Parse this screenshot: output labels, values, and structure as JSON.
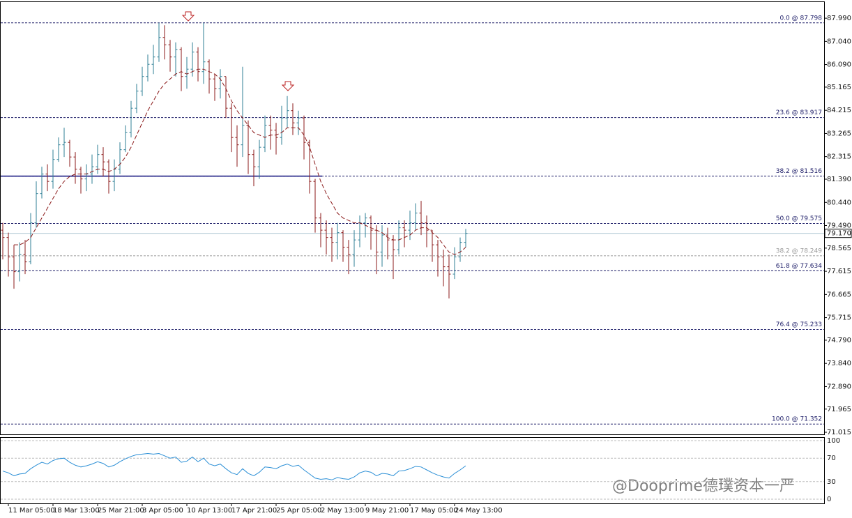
{
  "chart_data": [
    {
      "type": "ohlc",
      "categories": [
        null,
        "11 Mar 05:00",
        null,
        null,
        null,
        null,
        null,
        null,
        null,
        "18 Mar 13:00",
        null,
        null,
        null,
        null,
        null,
        null,
        null,
        "25 Mar 21:00",
        null,
        null,
        null,
        null,
        null,
        null,
        null,
        "3 Apr 05:00",
        null,
        null,
        null,
        null,
        null,
        null,
        null,
        "10 Apr 13:00",
        null,
        null,
        null,
        null,
        null,
        null,
        null,
        "17 Apr 21:00",
        null,
        null,
        null,
        null,
        null,
        null,
        null,
        "25 Apr 05:00",
        null,
        null,
        null,
        null,
        null,
        null,
        null,
        "2 May 13:00",
        null,
        null,
        null,
        null,
        null,
        null,
        null,
        "9 May 21:00",
        null,
        null,
        null,
        null,
        null,
        null,
        null,
        "17 May 05:00",
        null,
        null,
        null,
        null,
        null,
        null,
        null,
        "24 May 13:00",
        null,
        null
      ],
      "open": [
        79.3,
        79.0,
        78.2,
        77.6,
        78.3,
        78.0,
        79.6,
        80.8,
        81.6,
        81.3,
        82.2,
        82.8,
        82.9,
        82.3,
        81.8,
        81.4,
        81.6,
        81.9,
        82.4,
        82.1,
        81.3,
        81.8,
        82.6,
        83.3,
        84.3,
        85.0,
        85.6,
        86.1,
        86.4,
        87.2,
        86.9,
        86.4,
        86.7,
        85.6,
        85.9,
        86.6,
        85.8,
        86.2,
        85.5,
        85.1,
        85.6,
        84.3,
        83.1,
        82.8,
        83.6,
        82.4,
        81.9,
        82.7,
        83.6,
        83.4,
        83.1,
        83.9,
        84.2,
        83.7,
        83.9,
        82.9,
        81.3,
        79.8,
        79.3,
        79.0,
        78.8,
        79.2,
        78.6,
        78.3,
        78.9,
        79.6,
        79.8,
        79.3,
        78.4,
        79.1,
        78.9,
        78.5,
        79.4,
        79.3,
        79.6,
        80.0,
        79.6,
        79.3,
        78.7,
        78.2,
        77.8,
        77.5,
        78.2,
        78.8
      ],
      "high": [
        79.6,
        79.2,
        78.7,
        78.8,
        78.9,
        80.0,
        81.3,
        81.9,
        82.0,
        82.6,
        83.1,
        83.5,
        83.0,
        82.5,
        81.9,
        82.0,
        82.4,
        82.8,
        82.7,
        82.2,
        82.2,
        82.9,
        83.6,
        84.6,
        85.3,
        86.0,
        86.5,
        86.9,
        87.8,
        87.7,
        87.1,
        87.0,
        86.8,
        86.4,
        87.0,
        86.8,
        87.8,
        86.3,
        85.7,
        85.9,
        85.6,
        84.5,
        83.6,
        86.0,
        83.8,
        82.6,
        83.0,
        84.0,
        84.0,
        83.7,
        84.4,
        84.8,
        84.5,
        84.2,
        84.0,
        83.0,
        81.4,
        80.0,
        79.7,
        79.4,
        79.6,
        79.3,
        78.9,
        79.3,
        79.9,
        80.0,
        79.9,
        79.5,
        79.5,
        79.4,
        79.1,
        79.7,
        79.7,
        80.1,
        80.4,
        80.5,
        79.9,
        79.3,
        78.9,
        78.5,
        78.3,
        78.6,
        79.0,
        79.35
      ],
      "low": [
        78.1,
        77.4,
        76.9,
        77.2,
        77.5,
        77.9,
        79.4,
        80.6,
        80.9,
        81.0,
        82.1,
        82.3,
        81.9,
        81.2,
        80.8,
        80.9,
        81.2,
        81.6,
        81.5,
        80.8,
        80.9,
        81.6,
        82.5,
        83.1,
        84.1,
        84.8,
        85.4,
        85.7,
        86.2,
        86.3,
        85.8,
        85.6,
        85.0,
        85.1,
        85.6,
        85.4,
        85.3,
        84.9,
        84.6,
        84.7,
        83.9,
        82.5,
        81.9,
        82.3,
        81.6,
        81.1,
        81.4,
        82.5,
        82.6,
        82.4,
        82.8,
        83.5,
        83.2,
        83.2,
        82.2,
        80.8,
        79.2,
        78.6,
        78.3,
        78.0,
        78.1,
        78.0,
        77.5,
        77.8,
        78.6,
        79.0,
        78.5,
        77.5,
        77.8,
        78.1,
        77.3,
        78.3,
        78.6,
        78.9,
        79.3,
        79.1,
        78.6,
        78.0,
        77.4,
        77.0,
        76.5,
        77.3,
        78.0,
        78.6
      ],
      "close": [
        79.0,
        78.2,
        77.6,
        78.3,
        78.0,
        79.6,
        80.8,
        81.6,
        81.3,
        82.2,
        82.8,
        82.9,
        82.3,
        81.8,
        81.4,
        81.6,
        81.9,
        82.4,
        82.1,
        81.3,
        81.8,
        82.6,
        83.3,
        84.3,
        85.0,
        85.6,
        86.1,
        86.4,
        87.2,
        86.9,
        86.4,
        86.7,
        85.6,
        85.9,
        86.6,
        85.8,
        86.2,
        85.5,
        85.1,
        85.6,
        84.3,
        83.1,
        82.8,
        83.6,
        82.4,
        81.9,
        82.7,
        83.6,
        83.4,
        83.1,
        83.9,
        84.2,
        83.7,
        83.9,
        82.9,
        81.3,
        79.8,
        79.3,
        79.0,
        78.8,
        79.2,
        78.6,
        78.3,
        78.9,
        79.6,
        79.8,
        79.3,
        78.4,
        79.1,
        78.9,
        78.5,
        79.4,
        79.3,
        79.6,
        80.0,
        79.6,
        79.3,
        78.7,
        78.2,
        77.8,
        77.5,
        78.2,
        78.8,
        79.17
      ],
      "up_color": "#2f7f96",
      "down_color": "#8b1a1a",
      "ma": [
        null,
        null,
        78.7,
        78.7,
        78.8,
        79.0,
        79.4,
        79.8,
        80.2,
        80.6,
        81.0,
        81.3,
        81.5,
        81.6,
        81.6,
        81.6,
        81.7,
        81.8,
        81.8,
        81.7,
        81.8,
        82.0,
        82.3,
        82.7,
        83.2,
        83.7,
        84.2,
        84.6,
        85.0,
        85.3,
        85.5,
        85.7,
        85.8,
        85.7,
        85.8,
        85.9,
        85.9,
        85.8,
        85.7,
        85.5,
        85.1,
        84.6,
        84.2,
        83.9,
        83.6,
        83.3,
        83.2,
        83.1,
        83.2,
        83.2,
        83.3,
        83.5,
        83.5,
        83.5,
        83.2,
        82.7,
        82.0,
        81.3,
        80.8,
        80.4,
        80.0,
        79.8,
        79.7,
        79.6,
        79.6,
        79.5,
        79.4,
        79.3,
        79.2,
        79.0,
        78.9,
        78.9,
        79.0,
        79.1,
        79.3,
        79.4,
        79.4,
        79.2,
        79.0,
        78.7,
        78.4,
        78.3,
        78.4,
        78.6
      ],
      "ma_color": "#8b1a1a",
      "ylim": [
        70.93,
        88.65
      ],
      "yticks": [
        {
          "value": 87.99,
          "label": "87.990"
        },
        {
          "value": 87.04,
          "label": "87.040"
        },
        {
          "value": 86.09,
          "label": "86.090"
        },
        85.165,
        84.215,
        83.265,
        82.315,
        {
          "value": 81.39,
          "label": "81.390"
        },
        {
          "value": 80.44,
          "label": "80.440"
        },
        {
          "value": 79.49,
          "label": "79.490"
        },
        78.565,
        77.615,
        76.665,
        75.715,
        {
          "value": 74.79,
          "label": "74.790"
        },
        {
          "value": 73.84,
          "label": "73.840"
        },
        {
          "value": 72.89,
          "label": "72.890"
        },
        71.965,
        71.015
      ],
      "levels": [
        {
          "value": 87.798,
          "label": "0.0 @ 87.798",
          "color": "#1a1a66"
        },
        {
          "value": 83.917,
          "label": "23.6 @ 83.917",
          "color": "#1a1a66"
        },
        {
          "value": 81.516,
          "label": "38.2 @ 81.516",
          "color": "#1a1a66"
        },
        {
          "value": 79.575,
          "label": "50.0 @ 79.575",
          "color": "#1a1a66"
        },
        {
          "value": 78.249,
          "label": "38.2 @ 78.249",
          "color": "#9a9a9a"
        },
        {
          "value": 77.634,
          "label": "61.8 @ 77.634",
          "color": "#1a1a66"
        },
        {
          "value": 75.233,
          "label": "76.4 @ 75.233",
          "color": "#1a1a66"
        },
        {
          "value": 71.352,
          "label": "100.0 @ 71.352",
          "color": "#1a1a66"
        }
      ],
      "hline": {
        "value": 81.516,
        "color": "#0a0a7a"
      },
      "last_price": {
        "value": 79.17,
        "label": "79.170"
      }
    },
    {
      "type": "line",
      "values": [
        48,
        45,
        40,
        43,
        44,
        52,
        58,
        63,
        60,
        66,
        69,
        70,
        63,
        58,
        55,
        57,
        60,
        64,
        61,
        55,
        58,
        64,
        69,
        73,
        76,
        77,
        78,
        77,
        78,
        74,
        70,
        72,
        63,
        65,
        72,
        64,
        70,
        60,
        57,
        60,
        52,
        45,
        42,
        52,
        44,
        40,
        46,
        55,
        54,
        52,
        57,
        60,
        56,
        58,
        50,
        43,
        36,
        34,
        35,
        33,
        37,
        35,
        34,
        38,
        45,
        48,
        46,
        40,
        44,
        43,
        40,
        48,
        49,
        52,
        56,
        55,
        50,
        45,
        41,
        38,
        36,
        44,
        50,
        57
      ],
      "color": "#2b8fd6",
      "ylim": [
        0,
        100
      ],
      "yticks": [
        100,
        70,
        30,
        0
      ]
    }
  ],
  "watermark": "@Dooprime德璞资本一严"
}
